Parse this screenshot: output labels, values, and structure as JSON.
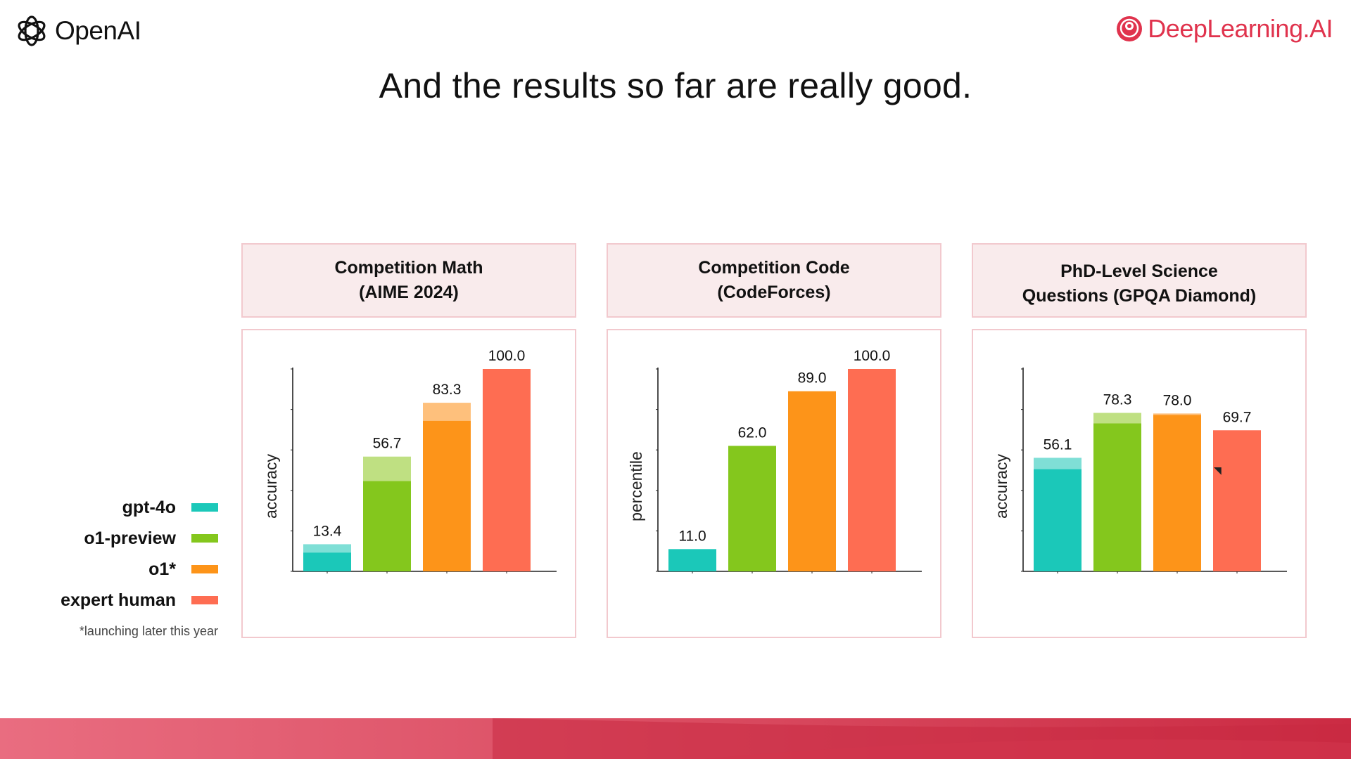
{
  "header": {
    "left_logo": "OpenAI",
    "right_logo": "DeepLearning.AI",
    "title": "And the results so far are really good."
  },
  "colors": {
    "gpt4o": "#1bc8b9",
    "gpt4o_light": "#7fdfd6",
    "o1preview": "#84c71d",
    "o1preview_light": "#bfe082",
    "o1": "#fd9419",
    "o1_light": "#fec07c",
    "expert": "#fe6d52",
    "brand": "#e0334d"
  },
  "legend": {
    "items": [
      {
        "label": "gpt-4o",
        "color": "#1bc8b9"
      },
      {
        "label": "o1-preview",
        "color": "#84c71d"
      },
      {
        "label": "o1*",
        "color": "#fd9419"
      },
      {
        "label": "expert human",
        "color": "#fe6d52"
      }
    ],
    "note": "*launching later this year"
  },
  "chart_data": [
    {
      "type": "bar",
      "title_lines": [
        "Competition Math",
        "(AIME 2024)"
      ],
      "ylabel": "accuracy",
      "ylim": [
        0,
        100
      ],
      "categories": [
        "gpt-4o",
        "o1-preview",
        "o1*",
        "expert human"
      ],
      "values": [
        13.4,
        56.7,
        83.3,
        100.0
      ],
      "labels": [
        "13.4",
        "56.7",
        "83.3",
        "100.0"
      ],
      "solid_values": [
        9.3,
        44.6,
        74.4,
        100.0
      ]
    },
    {
      "type": "bar",
      "title_lines": [
        "Competition Code",
        "(CodeForces)"
      ],
      "ylabel": "percentile",
      "ylim": [
        0,
        100
      ],
      "categories": [
        "gpt-4o",
        "o1-preview",
        "o1*",
        "expert human"
      ],
      "values": [
        11.0,
        62.0,
        89.0,
        100.0
      ],
      "labels": [
        "11.0",
        "62.0",
        "89.0",
        "100.0"
      ],
      "solid_values": [
        11.0,
        62.0,
        89.0,
        100.0
      ]
    },
    {
      "type": "bar",
      "title_lines": [
        "PhD-Level Science",
        "Questions (GPQA Diamond)"
      ],
      "ylabel": "accuracy",
      "ylim": [
        0,
        100
      ],
      "categories": [
        "gpt-4o",
        "o1-preview",
        "o1*",
        "expert human"
      ],
      "values": [
        56.1,
        78.3,
        78.0,
        69.7
      ],
      "labels": [
        "56.1",
        "78.3",
        "78.0",
        "69.7"
      ],
      "solid_values": [
        50.5,
        73.1,
        77.3,
        69.7
      ]
    }
  ]
}
